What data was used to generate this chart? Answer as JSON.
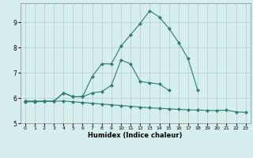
{
  "xlabel": "Humidex (Indice chaleur)",
  "x": [
    0,
    1,
    2,
    3,
    4,
    5,
    6,
    7,
    8,
    9,
    10,
    11,
    12,
    13,
    14,
    15,
    16,
    17,
    18,
    19,
    20,
    21,
    22,
    23
  ],
  "line1": [
    5.87,
    5.87,
    5.87,
    5.87,
    6.2,
    6.05,
    6.05,
    6.2,
    6.25,
    6.5,
    7.5,
    7.35,
    6.65,
    6.6,
    6.55,
    6.3,
    null,
    null,
    null,
    null,
    null,
    null,
    null,
    null
  ],
  "line2": [
    5.87,
    5.87,
    5.87,
    5.87,
    6.2,
    6.05,
    6.05,
    6.85,
    7.35,
    7.35,
    8.05,
    8.5,
    8.95,
    9.45,
    9.2,
    8.75,
    8.2,
    7.55,
    6.3,
    null,
    null,
    null,
    null,
    null
  ],
  "line3": [
    5.85,
    5.85,
    5.86,
    5.87,
    5.88,
    5.85,
    5.82,
    5.79,
    5.76,
    5.73,
    5.7,
    5.67,
    5.64,
    5.61,
    5.59,
    5.57,
    5.55,
    5.53,
    5.52,
    5.51,
    5.5,
    5.52,
    5.45,
    5.43
  ],
  "line_color": "#2E7D6E",
  "bg_color": "#D6EEEE",
  "grid_color": "#AACFCF",
  "ylim": [
    5.0,
    9.75
  ],
  "yticks": [
    5,
    6,
    7,
    8,
    9
  ],
  "xticks": [
    0,
    1,
    2,
    3,
    4,
    5,
    6,
    7,
    8,
    9,
    10,
    11,
    12,
    13,
    14,
    15,
    16,
    17,
    18,
    19,
    20,
    21,
    22,
    23
  ],
  "markersize": 2.0,
  "linewidth": 0.8
}
